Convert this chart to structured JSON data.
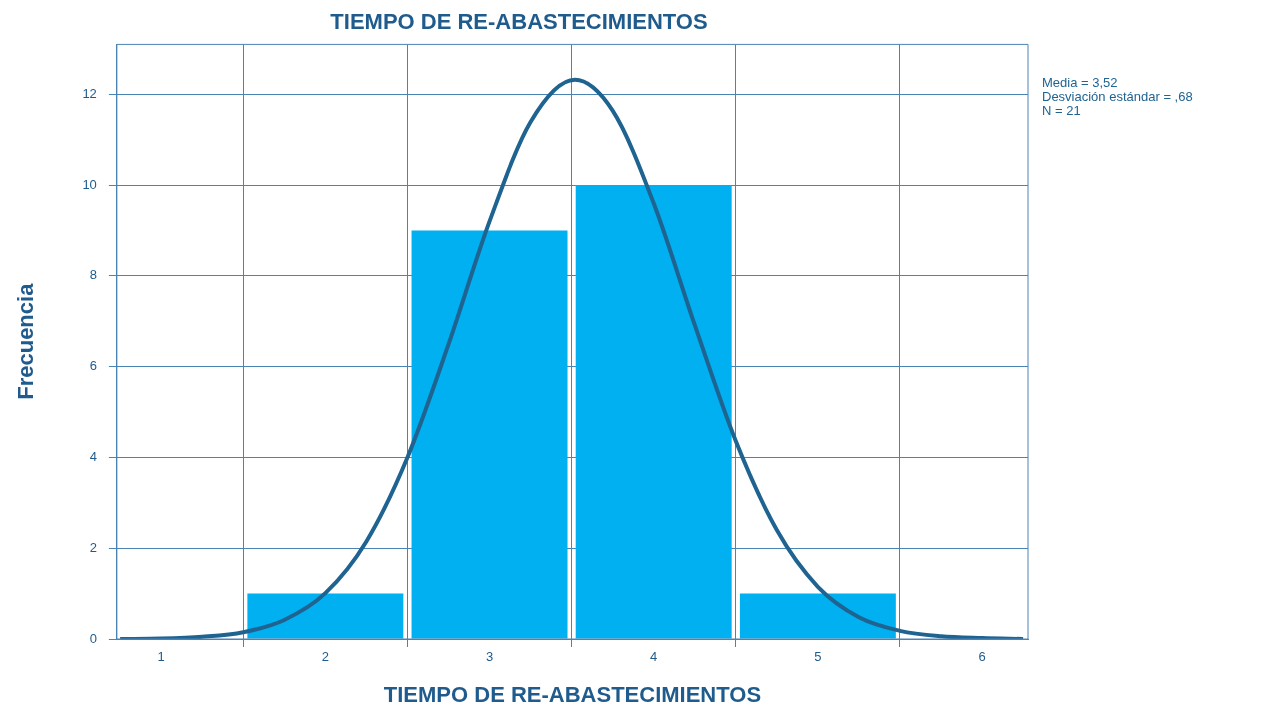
{
  "chart_data": {
    "type": "histogram",
    "title": "TIEMPO DE RE-ABASTECIMIENTOS",
    "xlabel": "TIEMPO DE RE-ABASTECIMIENTOS",
    "ylabel": "Frecuencia",
    "bins": [
      1.5,
      2.5,
      3.5,
      4.5,
      5.5
    ],
    "values": [
      1,
      9,
      10,
      1
    ],
    "color": "#00b0f0",
    "series": [
      {
        "type": "line",
        "color": "#1f6391",
        "x": [
          0.75,
          1.0,
          1.25,
          1.5,
          1.75,
          2.0,
          2.25,
          2.5,
          2.75,
          3.0,
          3.25,
          3.52,
          3.75,
          4.0,
          4.25,
          4.5,
          4.75,
          5.0,
          5.25,
          5.5,
          5.75,
          6.0,
          6.25
        ],
        "values": [
          0.0,
          0.01,
          0.05,
          0.15,
          0.42,
          1.01,
          2.15,
          4.0,
          6.49,
          9.2,
          11.39,
          12.32,
          11.64,
          9.6,
          6.92,
          4.36,
          2.4,
          1.15,
          0.48,
          0.18,
          0.06,
          0.02,
          0.0
        ]
      }
    ],
    "xlim": [
      0.73,
      6.28
    ],
    "xticks": [
      1,
      2,
      3,
      4,
      5,
      6
    ],
    "ylim": [
      0,
      13.1
    ],
    "yticks": [
      0,
      2,
      4,
      6,
      8,
      10,
      12
    ],
    "grid": true,
    "marker": "none",
    "annotations": [
      "Media = 3,52",
      "Desviación estándar = ,68",
      "N = 21"
    ]
  }
}
